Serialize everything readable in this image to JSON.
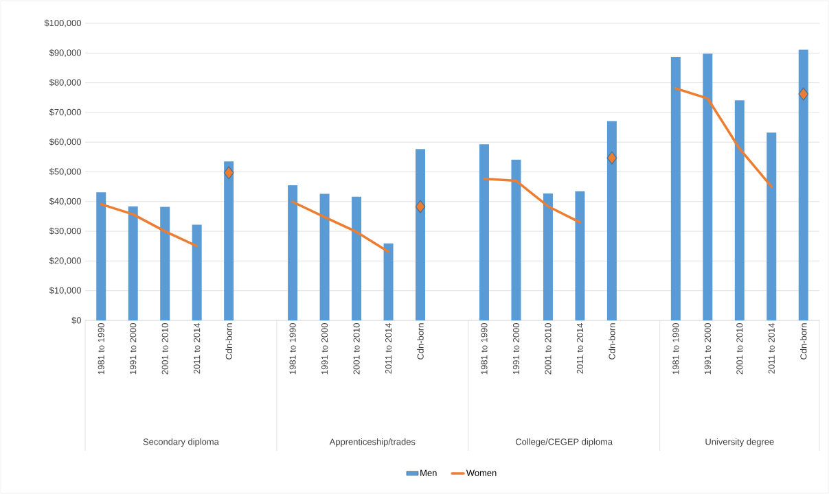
{
  "chart_data": {
    "type": "bar",
    "categories": [
      "1981 to 1990",
      "1991 to 2000",
      "2001 to 2010",
      "2011 to 2014",
      "Cdn-born",
      null,
      "1981 to 1990",
      "1991 to 2000",
      "2001 to 2010",
      "2011 to 2014",
      "Cdn-born",
      null,
      "1981 to 1990",
      "1991 to 2000",
      "2001 to 2010",
      "2011 to 2014",
      "Cdn-born",
      null,
      "1981 to 1990",
      "1991 to 2000",
      "2001 to 2010",
      "2011 to 2014",
      "Cdn-born"
    ],
    "series": [
      {
        "name": "Men",
        "color": "#5b9bd5",
        "values": [
          43100,
          38400,
          38200,
          32200,
          53500,
          null,
          45500,
          42600,
          41600,
          25900,
          57700,
          null,
          59300,
          54100,
          42700,
          43500,
          67100,
          null,
          88700,
          89800,
          74100,
          63200,
          91100
        ]
      },
      {
        "name": "Women",
        "type": "line",
        "color": "#ed7d31",
        "values": [
          39100,
          35700,
          30000,
          25000,
          null,
          null,
          39900,
          34800,
          29800,
          23100,
          null,
          null,
          47700,
          47000,
          38400,
          33000,
          null,
          null,
          78100,
          74700,
          57800,
          45000,
          null
        ]
      },
      {
        "type": "scatter",
        "color": "#ed7d31",
        "marker": "diamond",
        "values": [
          null,
          null,
          null,
          null,
          49700,
          null,
          null,
          null,
          null,
          null,
          38300,
          null,
          null,
          null,
          null,
          null,
          54700,
          null,
          null,
          null,
          null,
          null,
          76200
        ]
      }
    ],
    "annotations": [
      "Secondary diploma",
      "Apprenticeship/trades",
      "College/CEGEP diploma",
      "University degree"
    ],
    "ylim": [
      0,
      100000
    ],
    "yticks": [
      {
        "value": 0,
        "label": "$0"
      },
      {
        "value": 10000,
        "label": "$10,000"
      },
      {
        "value": 20000,
        "label": "$20,000"
      },
      {
        "value": 30000,
        "label": "$30,000"
      },
      {
        "value": 40000,
        "label": "$40,000"
      },
      {
        "value": 50000,
        "label": "$50,000"
      },
      {
        "value": 60000,
        "label": "$60,000"
      },
      {
        "value": 70000,
        "label": "$70,000"
      },
      {
        "value": 80000,
        "label": "$80,000"
      },
      {
        "value": 90000,
        "label": "$90,000"
      },
      {
        "value": 100000,
        "label": "$100,000"
      }
    ],
    "grid": "y",
    "legend": "bottom"
  }
}
